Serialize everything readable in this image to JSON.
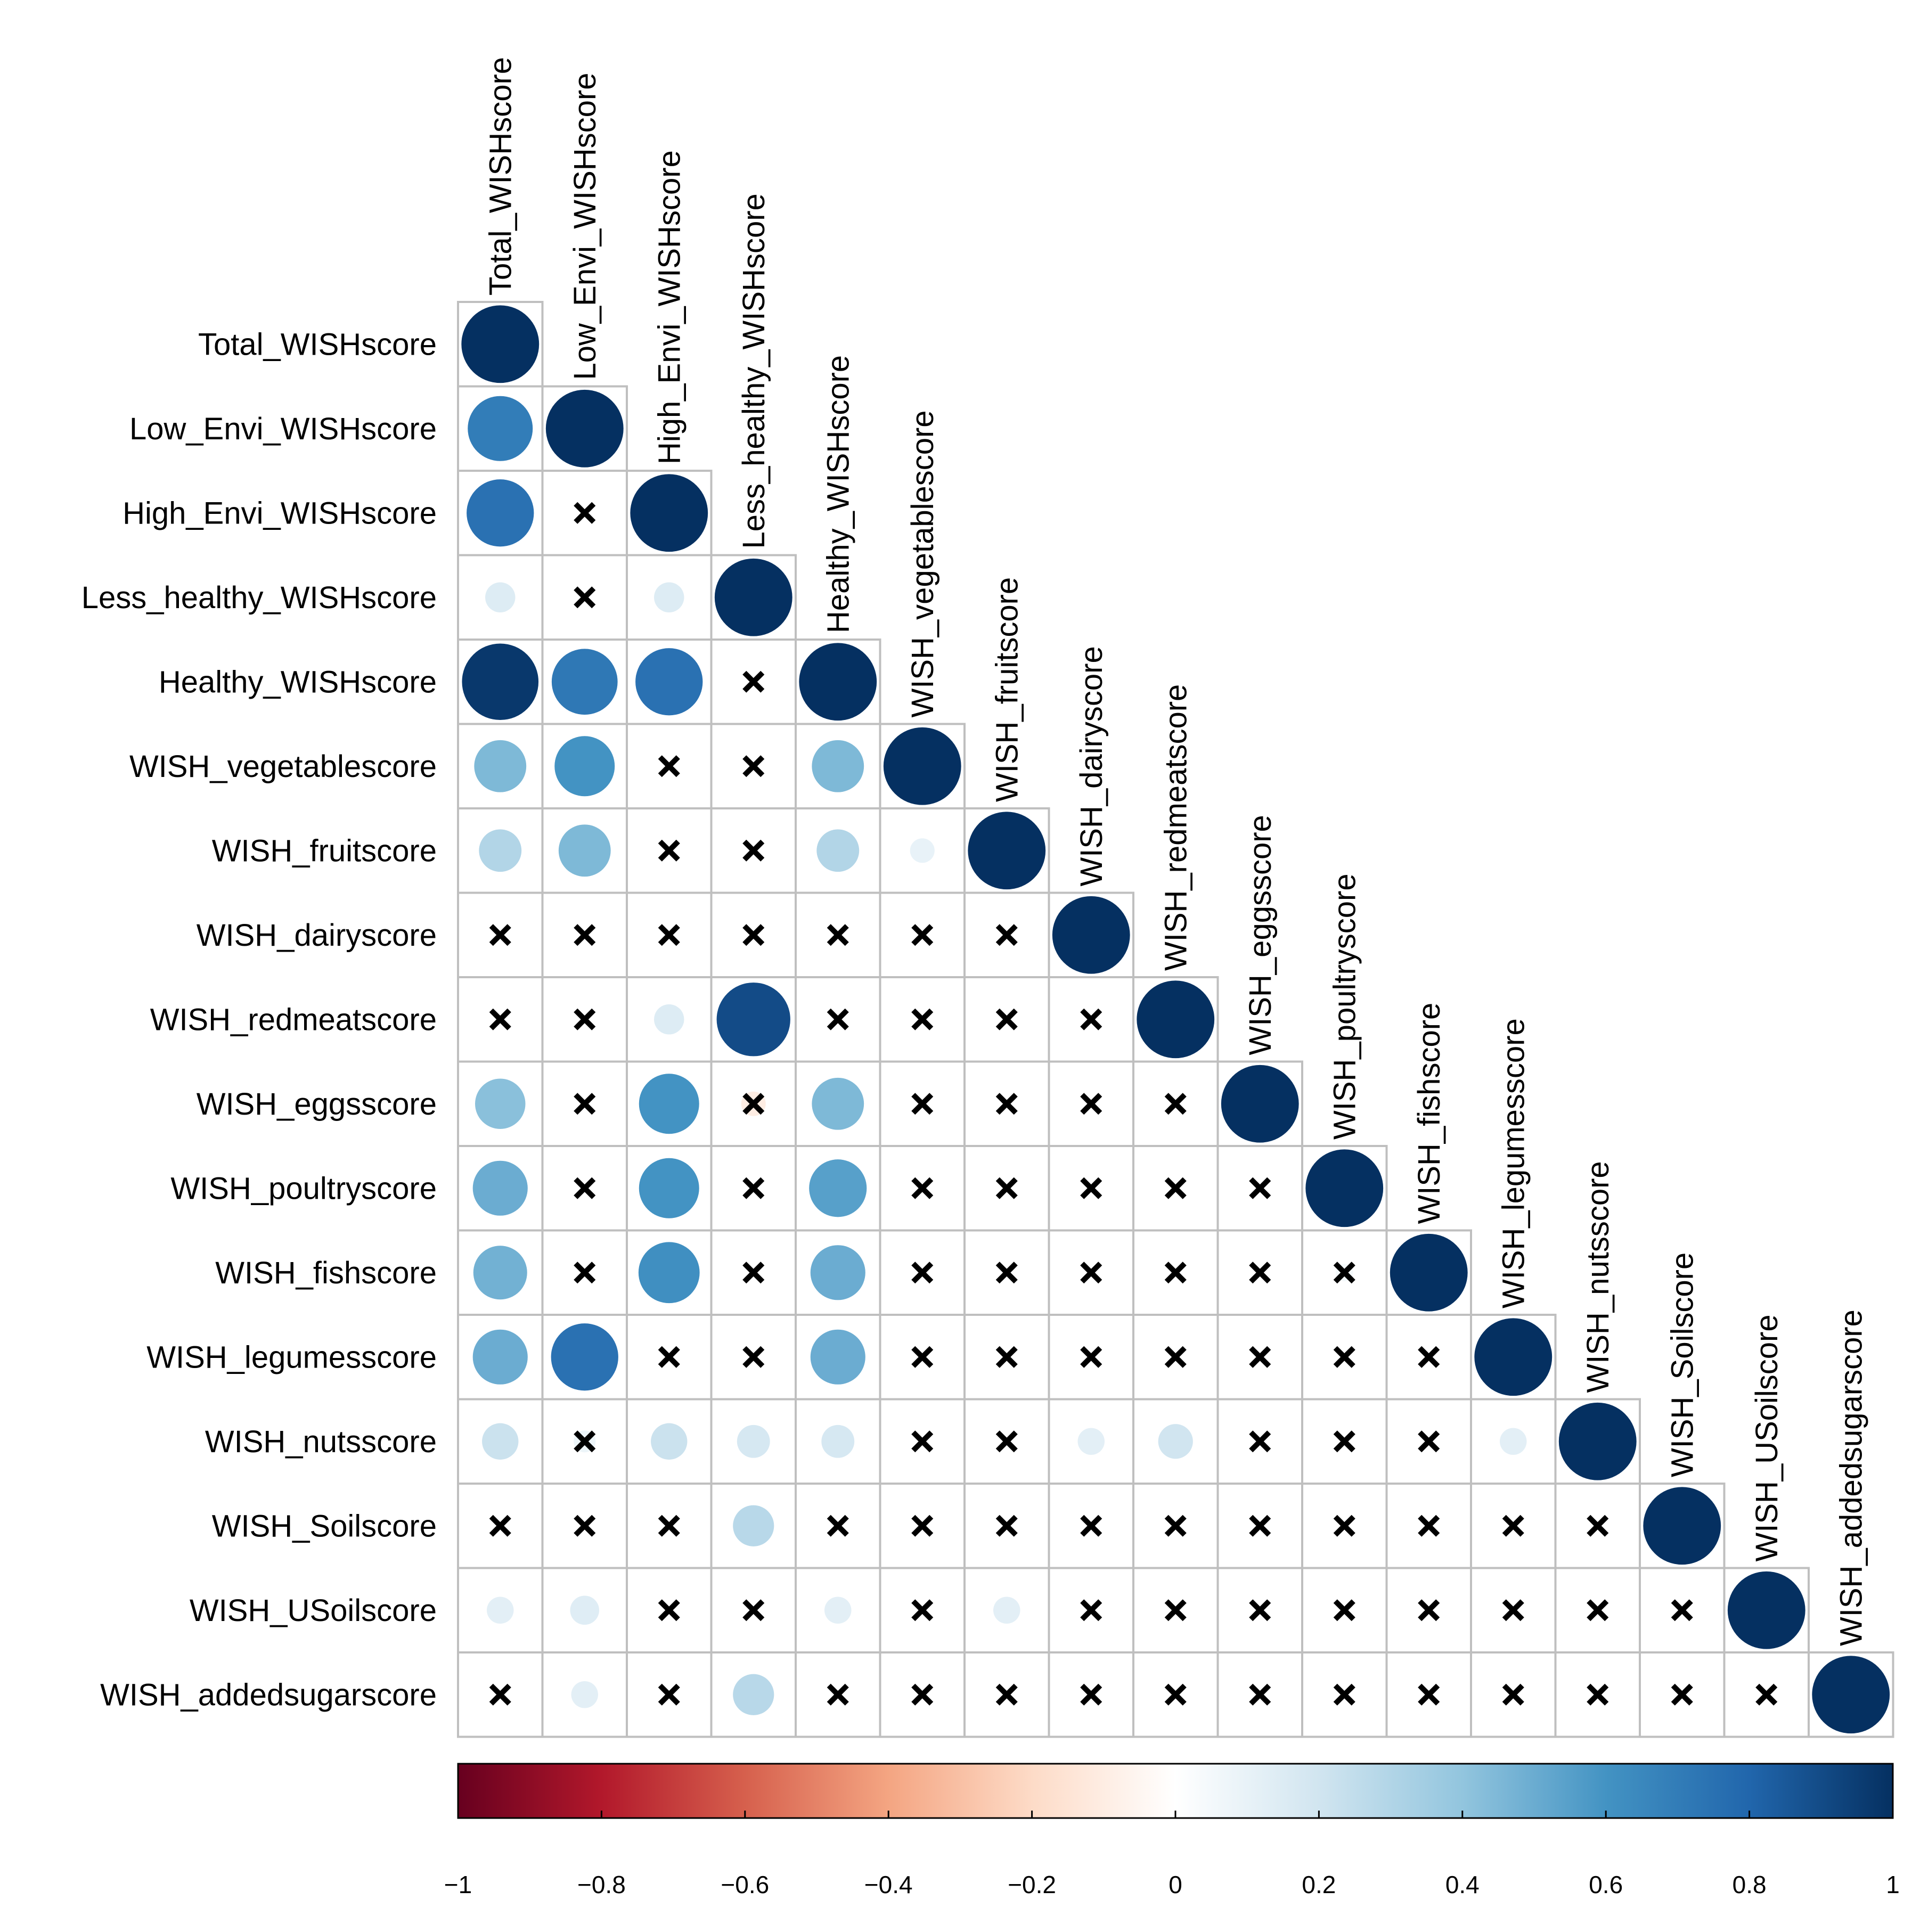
{
  "chart_data": {
    "type": "heatmap",
    "style": "lower-triangle correlation plot with circles; crosses mark non-significant correlations",
    "variables": [
      "Total_WISHscore",
      "Low_Envi_WISHscore",
      "High_Envi_WISHscore",
      "Less_healthy_WISHscore",
      "Healthy_WISHscore",
      "WISH_vegetablescore",
      "WISH_fruitscore",
      "WISH_dairyscore",
      "WISH_redmeatscore",
      "WISH_eggsscore",
      "WISH_poultryscore",
      "WISH_fishscore",
      "WISH_legumesscore",
      "WISH_nutsscore",
      "WISH_Soilscore",
      "WISH_USoilscore",
      "WISH_addedsugarscore"
    ],
    "cells": [
      {
        "row": 0,
        "col": 0,
        "value": 1.0,
        "significant": true
      },
      {
        "row": 1,
        "col": 0,
        "value": 0.7,
        "significant": true
      },
      {
        "row": 1,
        "col": 1,
        "value": 1.0,
        "significant": true
      },
      {
        "row": 2,
        "col": 0,
        "value": 0.75,
        "significant": true
      },
      {
        "row": 2,
        "col": 1,
        "value": 0.0,
        "significant": false
      },
      {
        "row": 2,
        "col": 2,
        "value": 1.0,
        "significant": true
      },
      {
        "row": 3,
        "col": 0,
        "value": 0.15,
        "significant": true
      },
      {
        "row": 3,
        "col": 1,
        "value": 0.0,
        "significant": false
      },
      {
        "row": 3,
        "col": 2,
        "value": 0.15,
        "significant": true
      },
      {
        "row": 3,
        "col": 3,
        "value": 1.0,
        "significant": true
      },
      {
        "row": 4,
        "col": 0,
        "value": 0.97,
        "significant": true
      },
      {
        "row": 4,
        "col": 1,
        "value": 0.72,
        "significant": true
      },
      {
        "row": 4,
        "col": 2,
        "value": 0.75,
        "significant": true
      },
      {
        "row": 4,
        "col": 3,
        "value": 0.0,
        "significant": false
      },
      {
        "row": 4,
        "col": 4,
        "value": 1.0,
        "significant": true
      },
      {
        "row": 5,
        "col": 0,
        "value": 0.45,
        "significant": true
      },
      {
        "row": 5,
        "col": 1,
        "value": 0.6,
        "significant": true
      },
      {
        "row": 5,
        "col": 2,
        "value": 0.0,
        "significant": false
      },
      {
        "row": 5,
        "col": 3,
        "value": 0.0,
        "significant": false
      },
      {
        "row": 5,
        "col": 4,
        "value": 0.45,
        "significant": true
      },
      {
        "row": 5,
        "col": 5,
        "value": 1.0,
        "significant": true
      },
      {
        "row": 6,
        "col": 0,
        "value": 0.3,
        "significant": true
      },
      {
        "row": 6,
        "col": 1,
        "value": 0.45,
        "significant": true
      },
      {
        "row": 6,
        "col": 2,
        "value": 0.0,
        "significant": false
      },
      {
        "row": 6,
        "col": 3,
        "value": 0.0,
        "significant": false
      },
      {
        "row": 6,
        "col": 4,
        "value": 0.3,
        "significant": true
      },
      {
        "row": 6,
        "col": 5,
        "value": 0.1,
        "significant": true
      },
      {
        "row": 6,
        "col": 6,
        "value": 1.0,
        "significant": true
      },
      {
        "row": 7,
        "col": 0,
        "value": 0.0,
        "significant": false
      },
      {
        "row": 7,
        "col": 1,
        "value": 0.0,
        "significant": false
      },
      {
        "row": 7,
        "col": 2,
        "value": 0.0,
        "significant": false
      },
      {
        "row": 7,
        "col": 3,
        "value": 0.0,
        "significant": false
      },
      {
        "row": 7,
        "col": 4,
        "value": 0.0,
        "significant": false
      },
      {
        "row": 7,
        "col": 5,
        "value": 0.0,
        "significant": false
      },
      {
        "row": 7,
        "col": 6,
        "value": 0.0,
        "significant": false
      },
      {
        "row": 7,
        "col": 7,
        "value": 1.0,
        "significant": true
      },
      {
        "row": 8,
        "col": 0,
        "value": 0.0,
        "significant": false
      },
      {
        "row": 8,
        "col": 1,
        "value": 0.0,
        "significant": false
      },
      {
        "row": 8,
        "col": 2,
        "value": 0.15,
        "significant": true
      },
      {
        "row": 8,
        "col": 3,
        "value": 0.9,
        "significant": true
      },
      {
        "row": 8,
        "col": 4,
        "value": 0.0,
        "significant": false
      },
      {
        "row": 8,
        "col": 5,
        "value": 0.0,
        "significant": false
      },
      {
        "row": 8,
        "col": 6,
        "value": 0.0,
        "significant": false
      },
      {
        "row": 8,
        "col": 7,
        "value": 0.0,
        "significant": false
      },
      {
        "row": 8,
        "col": 8,
        "value": 1.0,
        "significant": true
      },
      {
        "row": 9,
        "col": 0,
        "value": 0.42,
        "significant": true
      },
      {
        "row": 9,
        "col": 1,
        "value": 0.0,
        "significant": false
      },
      {
        "row": 9,
        "col": 2,
        "value": 0.6,
        "significant": true
      },
      {
        "row": 9,
        "col": 3,
        "value": -0.1,
        "significant": false
      },
      {
        "row": 9,
        "col": 4,
        "value": 0.45,
        "significant": true
      },
      {
        "row": 9,
        "col": 5,
        "value": 0.0,
        "significant": false
      },
      {
        "row": 9,
        "col": 6,
        "value": 0.0,
        "significant": false
      },
      {
        "row": 9,
        "col": 7,
        "value": 0.0,
        "significant": false
      },
      {
        "row": 9,
        "col": 8,
        "value": 0.0,
        "significant": false
      },
      {
        "row": 9,
        "col": 9,
        "value": 1.0,
        "significant": true
      },
      {
        "row": 10,
        "col": 0,
        "value": 0.5,
        "significant": true
      },
      {
        "row": 10,
        "col": 1,
        "value": 0.0,
        "significant": false
      },
      {
        "row": 10,
        "col": 2,
        "value": 0.6,
        "significant": true
      },
      {
        "row": 10,
        "col": 3,
        "value": 0.0,
        "significant": false
      },
      {
        "row": 10,
        "col": 4,
        "value": 0.55,
        "significant": true
      },
      {
        "row": 10,
        "col": 5,
        "value": 0.0,
        "significant": false
      },
      {
        "row": 10,
        "col": 6,
        "value": 0.0,
        "significant": false
      },
      {
        "row": 10,
        "col": 7,
        "value": 0.0,
        "significant": false
      },
      {
        "row": 10,
        "col": 8,
        "value": 0.0,
        "significant": false
      },
      {
        "row": 10,
        "col": 9,
        "value": 0.0,
        "significant": false
      },
      {
        "row": 10,
        "col": 10,
        "value": 1.0,
        "significant": true
      },
      {
        "row": 11,
        "col": 0,
        "value": 0.48,
        "significant": true
      },
      {
        "row": 11,
        "col": 1,
        "value": 0.0,
        "significant": false
      },
      {
        "row": 11,
        "col": 2,
        "value": 0.62,
        "significant": true
      },
      {
        "row": 11,
        "col": 3,
        "value": 0.0,
        "significant": false
      },
      {
        "row": 11,
        "col": 4,
        "value": 0.5,
        "significant": true
      },
      {
        "row": 11,
        "col": 5,
        "value": 0.0,
        "significant": false
      },
      {
        "row": 11,
        "col": 6,
        "value": 0.0,
        "significant": false
      },
      {
        "row": 11,
        "col": 7,
        "value": 0.0,
        "significant": false
      },
      {
        "row": 11,
        "col": 8,
        "value": 0.0,
        "significant": false
      },
      {
        "row": 11,
        "col": 9,
        "value": 0.0,
        "significant": false
      },
      {
        "row": 11,
        "col": 10,
        "value": 0.05,
        "significant": false
      },
      {
        "row": 11,
        "col": 11,
        "value": 1.0,
        "significant": true
      },
      {
        "row": 12,
        "col": 0,
        "value": 0.5,
        "significant": true
      },
      {
        "row": 12,
        "col": 1,
        "value": 0.75,
        "significant": true
      },
      {
        "row": 12,
        "col": 2,
        "value": 0.0,
        "significant": false
      },
      {
        "row": 12,
        "col": 3,
        "value": 0.0,
        "significant": false
      },
      {
        "row": 12,
        "col": 4,
        "value": 0.5,
        "significant": true
      },
      {
        "row": 12,
        "col": 5,
        "value": 0.0,
        "significant": false
      },
      {
        "row": 12,
        "col": 6,
        "value": 0.0,
        "significant": false
      },
      {
        "row": 12,
        "col": 7,
        "value": 0.0,
        "significant": false
      },
      {
        "row": 12,
        "col": 8,
        "value": 0.0,
        "significant": false
      },
      {
        "row": 12,
        "col": 9,
        "value": 0.0,
        "significant": false
      },
      {
        "row": 12,
        "col": 10,
        "value": 0.0,
        "significant": false
      },
      {
        "row": 12,
        "col": 11,
        "value": 0.0,
        "significant": false
      },
      {
        "row": 12,
        "col": 12,
        "value": 1.0,
        "significant": true
      },
      {
        "row": 13,
        "col": 0,
        "value": 0.22,
        "significant": true
      },
      {
        "row": 13,
        "col": 1,
        "value": 0.08,
        "significant": false
      },
      {
        "row": 13,
        "col": 2,
        "value": 0.22,
        "significant": true
      },
      {
        "row": 13,
        "col": 3,
        "value": 0.18,
        "significant": true
      },
      {
        "row": 13,
        "col": 4,
        "value": 0.18,
        "significant": true
      },
      {
        "row": 13,
        "col": 5,
        "value": 0.0,
        "significant": false
      },
      {
        "row": 13,
        "col": 6,
        "value": 0.0,
        "significant": false
      },
      {
        "row": 13,
        "col": 7,
        "value": 0.12,
        "significant": true
      },
      {
        "row": 13,
        "col": 8,
        "value": 0.2,
        "significant": true
      },
      {
        "row": 13,
        "col": 9,
        "value": 0.0,
        "significant": false
      },
      {
        "row": 13,
        "col": 10,
        "value": 0.0,
        "significant": false
      },
      {
        "row": 13,
        "col": 11,
        "value": 0.0,
        "significant": false
      },
      {
        "row": 13,
        "col": 12,
        "value": 0.12,
        "significant": true
      },
      {
        "row": 13,
        "col": 13,
        "value": 1.0,
        "significant": true
      },
      {
        "row": 14,
        "col": 0,
        "value": 0.0,
        "significant": false
      },
      {
        "row": 14,
        "col": 1,
        "value": 0.0,
        "significant": false
      },
      {
        "row": 14,
        "col": 2,
        "value": 0.0,
        "significant": false
      },
      {
        "row": 14,
        "col": 3,
        "value": 0.28,
        "significant": true
      },
      {
        "row": 14,
        "col": 4,
        "value": 0.0,
        "significant": false
      },
      {
        "row": 14,
        "col": 5,
        "value": 0.0,
        "significant": false
      },
      {
        "row": 14,
        "col": 6,
        "value": 0.0,
        "significant": false
      },
      {
        "row": 14,
        "col": 7,
        "value": 0.0,
        "significant": false
      },
      {
        "row": 14,
        "col": 8,
        "value": 0.0,
        "significant": false
      },
      {
        "row": 14,
        "col": 9,
        "value": 0.0,
        "significant": false
      },
      {
        "row": 14,
        "col": 10,
        "value": 0.0,
        "significant": false
      },
      {
        "row": 14,
        "col": 11,
        "value": 0.0,
        "significant": false
      },
      {
        "row": 14,
        "col": 12,
        "value": 0.0,
        "significant": false
      },
      {
        "row": 14,
        "col": 13,
        "value": 0.0,
        "significant": false
      },
      {
        "row": 14,
        "col": 14,
        "value": 1.0,
        "significant": true
      },
      {
        "row": 15,
        "col": 0,
        "value": 0.12,
        "significant": true
      },
      {
        "row": 15,
        "col": 1,
        "value": 0.14,
        "significant": true
      },
      {
        "row": 15,
        "col": 2,
        "value": 0.0,
        "significant": false
      },
      {
        "row": 15,
        "col": 3,
        "value": 0.0,
        "significant": false
      },
      {
        "row": 15,
        "col": 4,
        "value": 0.12,
        "significant": true
      },
      {
        "row": 15,
        "col": 5,
        "value": 0.0,
        "significant": false
      },
      {
        "row": 15,
        "col": 6,
        "value": 0.12,
        "significant": true
      },
      {
        "row": 15,
        "col": 7,
        "value": 0.0,
        "significant": false
      },
      {
        "row": 15,
        "col": 8,
        "value": 0.0,
        "significant": false
      },
      {
        "row": 15,
        "col": 9,
        "value": 0.0,
        "significant": false
      },
      {
        "row": 15,
        "col": 10,
        "value": 0.0,
        "significant": false
      },
      {
        "row": 15,
        "col": 11,
        "value": 0.0,
        "significant": false
      },
      {
        "row": 15,
        "col": 12,
        "value": 0.0,
        "significant": false
      },
      {
        "row": 15,
        "col": 13,
        "value": 0.0,
        "significant": false
      },
      {
        "row": 15,
        "col": 14,
        "value": 0.0,
        "significant": false
      },
      {
        "row": 15,
        "col": 15,
        "value": 1.0,
        "significant": true
      },
      {
        "row": 16,
        "col": 0,
        "value": 0.0,
        "significant": false
      },
      {
        "row": 16,
        "col": 1,
        "value": 0.12,
        "significant": true
      },
      {
        "row": 16,
        "col": 2,
        "value": 0.0,
        "significant": false
      },
      {
        "row": 16,
        "col": 3,
        "value": 0.28,
        "significant": true
      },
      {
        "row": 16,
        "col": 4,
        "value": 0.0,
        "significant": false
      },
      {
        "row": 16,
        "col": 5,
        "value": 0.0,
        "significant": false
      },
      {
        "row": 16,
        "col": 6,
        "value": 0.0,
        "significant": false
      },
      {
        "row": 16,
        "col": 7,
        "value": 0.0,
        "significant": false
      },
      {
        "row": 16,
        "col": 8,
        "value": 0.0,
        "significant": false
      },
      {
        "row": 16,
        "col": 9,
        "value": 0.0,
        "significant": false
      },
      {
        "row": 16,
        "col": 10,
        "value": 0.0,
        "significant": false
      },
      {
        "row": 16,
        "col": 11,
        "value": 0.0,
        "significant": false
      },
      {
        "row": 16,
        "col": 12,
        "value": 0.0,
        "significant": false
      },
      {
        "row": 16,
        "col": 13,
        "value": 0.0,
        "significant": false
      },
      {
        "row": 16,
        "col": 14,
        "value": 0.0,
        "significant": false
      },
      {
        "row": 16,
        "col": 15,
        "value": 0.0,
        "significant": false
      },
      {
        "row": 16,
        "col": 16,
        "value": 1.0,
        "significant": true
      }
    ],
    "colorbar": {
      "range": [
        -1,
        1
      ],
      "tick_labels": [
        "−1",
        "−0.8",
        "−0.6",
        "−0.4",
        "−0.2",
        "0",
        "0.2",
        "0.4",
        "0.6",
        "0.8",
        "1"
      ],
      "tick_values": [
        -1,
        -0.8,
        -0.6,
        -0.4,
        -0.2,
        0,
        0.2,
        0.4,
        0.6,
        0.8,
        1
      ],
      "placement": "bottom",
      "colors": {
        "neg_1": "#67001F",
        "neg_0_8": "#B2182B",
        "neg_0_6": "#D6604D",
        "neg_0_4": "#F4A582",
        "neg_0_2": "#FDDBC7",
        "zero": "#FFFFFF",
        "pos_0_2": "#D1E5F0",
        "pos_0_4": "#92C5DE",
        "pos_0_6": "#4393C3",
        "pos_0_8": "#2166AC",
        "pos_1": "#053061"
      }
    },
    "grid_color": "#BFBFBF",
    "cross_color": "#000000"
  }
}
